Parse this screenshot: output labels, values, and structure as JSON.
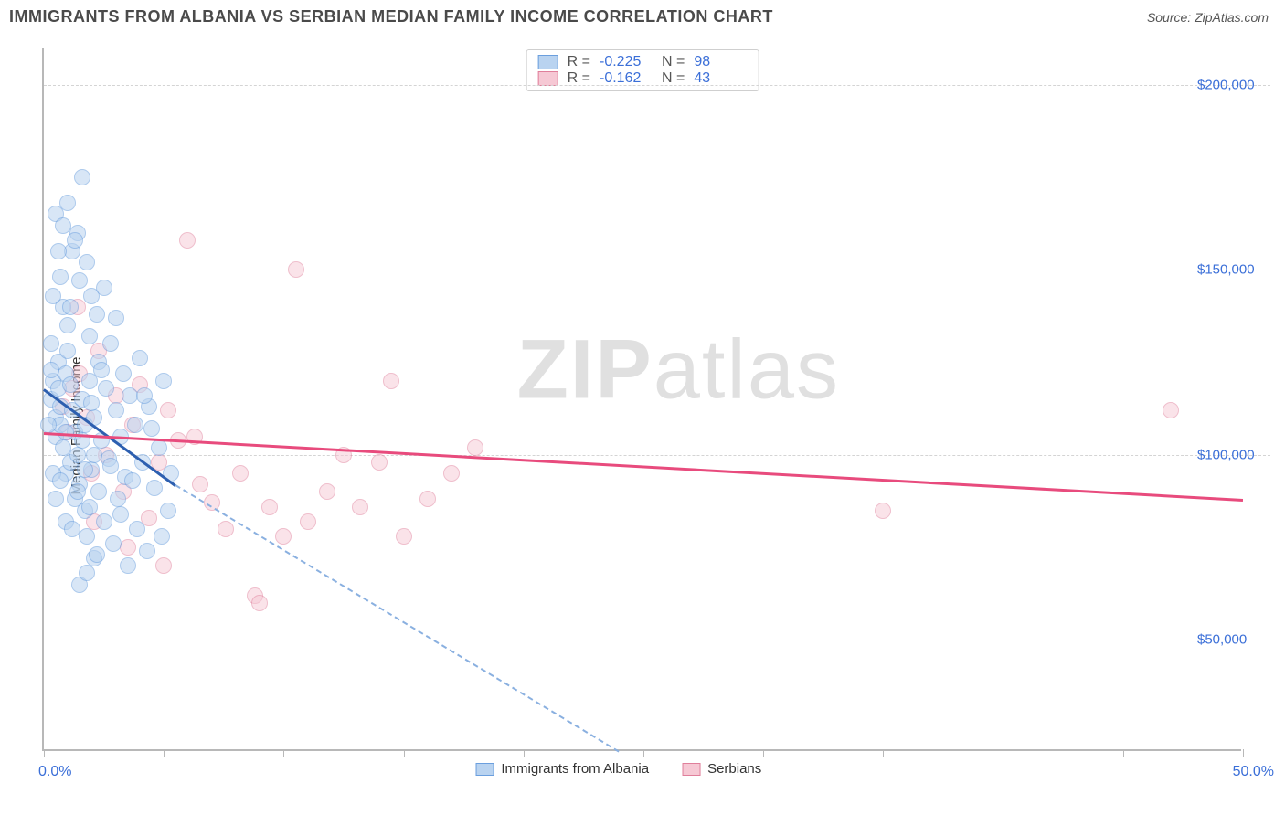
{
  "title": "IMMIGRANTS FROM ALBANIA VS SERBIAN MEDIAN FAMILY INCOME CORRELATION CHART",
  "source_label": "Source: ZipAtlas.com",
  "ylabel": "Median Family Income",
  "x_axis": {
    "min_label": "0.0%",
    "max_label": "50.0%",
    "min": 0,
    "max": 50,
    "tick_step_pct": 5
  },
  "y_axis": {
    "min": 20000,
    "max": 210000,
    "ticks": [
      50000,
      100000,
      150000,
      200000
    ],
    "tick_labels": [
      "$50,000",
      "$100,000",
      "$150,000",
      "$200,000"
    ]
  },
  "watermark": "ZIPatlas",
  "series": {
    "albania": {
      "label": "Immigrants from Albania",
      "fill": "#b9d3f0",
      "stroke": "#6b9fde",
      "fill_alpha": 0.55,
      "line_color": "#2d5fb0",
      "R": "-0.225",
      "N": "98",
      "marker_radius": 9,
      "trend": {
        "x1": 0,
        "y1": 118000,
        "x2": 5.5,
        "y2": 92000,
        "extrap_x2": 24,
        "extrap_y2": 20000
      },
      "points": [
        [
          0.3,
          115000
        ],
        [
          0.4,
          120000
        ],
        [
          0.5,
          110000
        ],
        [
          0.5,
          105000
        ],
        [
          0.6,
          118000
        ],
        [
          0.6,
          125000
        ],
        [
          0.7,
          108000
        ],
        [
          0.7,
          113000
        ],
        [
          0.8,
          140000
        ],
        [
          0.8,
          102000
        ],
        [
          0.9,
          122000
        ],
        [
          0.9,
          95000
        ],
        [
          1.0,
          135000
        ],
        [
          1.0,
          128000
        ],
        [
          1.1,
          119000
        ],
        [
          1.1,
          98000
        ],
        [
          1.2,
          155000
        ],
        [
          1.2,
          112000
        ],
        [
          1.3,
          88000
        ],
        [
          1.3,
          106000
        ],
        [
          1.4,
          160000
        ],
        [
          1.4,
          100000
        ],
        [
          1.5,
          147000
        ],
        [
          1.5,
          92000
        ],
        [
          1.6,
          175000
        ],
        [
          1.6,
          115000
        ],
        [
          1.7,
          85000
        ],
        [
          1.7,
          108000
        ],
        [
          1.8,
          152000
        ],
        [
          1.8,
          78000
        ],
        [
          1.9,
          132000
        ],
        [
          1.9,
          120000
        ],
        [
          2.0,
          96000
        ],
        [
          2.0,
          143000
        ],
        [
          2.1,
          72000
        ],
        [
          2.1,
          110000
        ],
        [
          2.2,
          138000
        ],
        [
          2.3,
          125000
        ],
        [
          2.3,
          90000
        ],
        [
          2.4,
          104000
        ],
        [
          2.5,
          145000
        ],
        [
          2.5,
          82000
        ],
        [
          2.6,
          118000
        ],
        [
          2.7,
          99000
        ],
        [
          2.8,
          130000
        ],
        [
          2.9,
          76000
        ],
        [
          3.0,
          112000
        ],
        [
          3.0,
          137000
        ],
        [
          3.1,
          88000
        ],
        [
          3.2,
          105000
        ],
        [
          3.3,
          122000
        ],
        [
          3.4,
          94000
        ],
        [
          3.5,
          70000
        ],
        [
          3.6,
          116000
        ],
        [
          3.8,
          108000
        ],
        [
          3.9,
          80000
        ],
        [
          4.0,
          126000
        ],
        [
          4.1,
          98000
        ],
        [
          4.3,
          74000
        ],
        [
          4.4,
          113000
        ],
        [
          4.6,
          91000
        ],
        [
          4.8,
          102000
        ],
        [
          5.0,
          120000
        ],
        [
          5.2,
          85000
        ],
        [
          0.5,
          165000
        ],
        [
          0.7,
          148000
        ],
        [
          1.0,
          168000
        ],
        [
          1.3,
          158000
        ],
        [
          0.4,
          143000
        ],
        [
          0.6,
          155000
        ],
        [
          0.8,
          162000
        ],
        [
          1.5,
          65000
        ],
        [
          1.8,
          68000
        ],
        [
          2.2,
          73000
        ],
        [
          0.3,
          130000
        ],
        [
          0.4,
          95000
        ],
        [
          0.9,
          82000
        ],
        [
          1.1,
          140000
        ],
        [
          1.7,
          96000
        ],
        [
          2.0,
          114000
        ],
        [
          2.4,
          123000
        ],
        [
          2.8,
          97000
        ],
        [
          3.2,
          84000
        ],
        [
          3.7,
          93000
        ],
        [
          4.2,
          116000
        ],
        [
          4.5,
          107000
        ],
        [
          4.9,
          78000
        ],
        [
          5.3,
          95000
        ],
        [
          0.2,
          108000
        ],
        [
          0.3,
          123000
        ],
        [
          0.5,
          88000
        ],
        [
          0.7,
          93000
        ],
        [
          0.9,
          106000
        ],
        [
          1.2,
          80000
        ],
        [
          1.4,
          90000
        ],
        [
          1.6,
          104000
        ],
        [
          1.9,
          86000
        ],
        [
          2.1,
          100000
        ]
      ]
    },
    "serbian": {
      "label": "Serbians",
      "fill": "#f6c8d4",
      "stroke": "#e07f9b",
      "fill_alpha": 0.5,
      "line_color": "#e84b7d",
      "R": "-0.162",
      "N": "43",
      "marker_radius": 9,
      "trend": {
        "x1": 0,
        "y1": 106000,
        "x2": 50,
        "y2": 88000
      },
      "points": [
        [
          0.8,
          113000
        ],
        [
          1.0,
          106000
        ],
        [
          1.2,
          118000
        ],
        [
          1.5,
          122000
        ],
        [
          1.8,
          110000
        ],
        [
          2.0,
          95000
        ],
        [
          2.3,
          128000
        ],
        [
          2.6,
          100000
        ],
        [
          3.0,
          116000
        ],
        [
          3.3,
          90000
        ],
        [
          3.7,
          108000
        ],
        [
          4.0,
          119000
        ],
        [
          4.4,
          83000
        ],
        [
          4.8,
          98000
        ],
        [
          5.2,
          112000
        ],
        [
          5.6,
          104000
        ],
        [
          6.0,
          158000
        ],
        [
          6.5,
          92000
        ],
        [
          7.0,
          87000
        ],
        [
          7.6,
          80000
        ],
        [
          8.2,
          95000
        ],
        [
          8.8,
          62000
        ],
        [
          9.4,
          86000
        ],
        [
          10.0,
          78000
        ],
        [
          10.5,
          150000
        ],
        [
          11.0,
          82000
        ],
        [
          11.8,
          90000
        ],
        [
          12.5,
          100000
        ],
        [
          13.2,
          86000
        ],
        [
          14.0,
          98000
        ],
        [
          14.5,
          120000
        ],
        [
          15.0,
          78000
        ],
        [
          16.0,
          88000
        ],
        [
          17.0,
          95000
        ],
        [
          18.0,
          102000
        ],
        [
          1.4,
          140000
        ],
        [
          2.1,
          82000
        ],
        [
          3.5,
          75000
        ],
        [
          5.0,
          70000
        ],
        [
          6.3,
          105000
        ],
        [
          35.0,
          85000
        ],
        [
          47.0,
          112000
        ],
        [
          9.0,
          60000
        ]
      ]
    }
  },
  "legend_top": {
    "rows": [
      {
        "series": "albania",
        "R_label": "R =",
        "N_label": "N ="
      },
      {
        "series": "serbian",
        "R_label": "R =",
        "N_label": "N ="
      }
    ]
  },
  "colors": {
    "title_text": "#4a4a4a",
    "axis_text": "#3b6fd8",
    "grid": "#d4d4d4",
    "border": "#b8b8b8",
    "watermark": "#e0e0e0"
  }
}
